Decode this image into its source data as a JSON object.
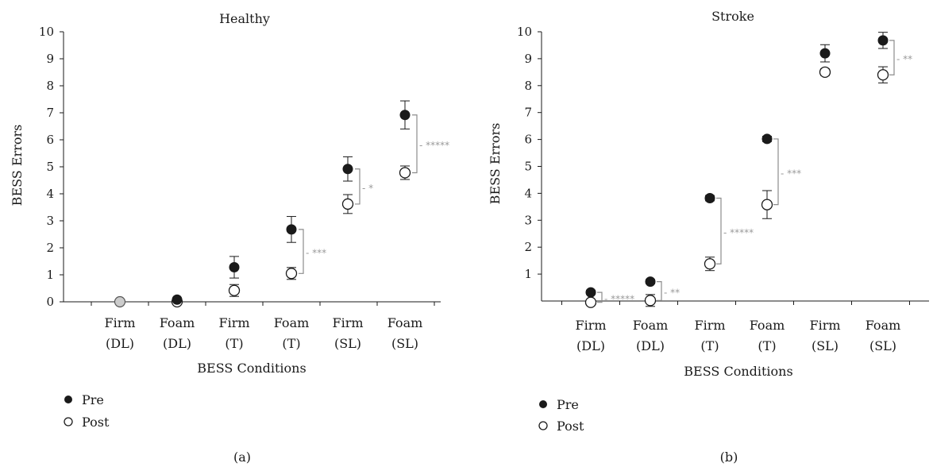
{
  "colors": {
    "pre_fill": "#1a1a1a",
    "post_fill": "#ffffff",
    "grey_point": "#cccccc",
    "bracket": "#8c8c8c",
    "axis": "#1a1a1a"
  },
  "legend": {
    "pre_label": "Pre",
    "post_label": "Post"
  },
  "chart_data": [
    {
      "type": "scatter",
      "panel_label": "(a)",
      "title": "Healthy",
      "xlabel": "BESS Conditions",
      "ylabel": "BESS Errors",
      "ylim": [
        0,
        10
      ],
      "yticks": [
        "0",
        "1",
        "2",
        "3",
        "4",
        "5",
        "6",
        "7",
        "8",
        "9",
        "10"
      ],
      "grid": false,
      "legend_position": "bottom-left",
      "categories": [
        {
          "line1": "Firm",
          "line2": "(DL)"
        },
        {
          "line1": "Foam",
          "line2": "(DL)"
        },
        {
          "line1": "Firm",
          "line2": "(T)"
        },
        {
          "line1": "Foam",
          "line2": "(T)"
        },
        {
          "line1": "Firm",
          "line2": "(SL)"
        },
        {
          "line1": "Foam",
          "line2": "(SL)"
        }
      ],
      "shared_point": {
        "category_index": 0,
        "value": 0
      },
      "series": [
        {
          "name": "Pre",
          "values": [
            null,
            0.08,
            1.28,
            2.68,
            4.92,
            6.92
          ],
          "err": [
            null,
            0.05,
            0.4,
            0.48,
            0.45,
            0.52
          ]
        },
        {
          "name": "Post",
          "values": [
            null,
            0.0,
            0.42,
            1.05,
            3.62,
            4.78
          ],
          "err": [
            null,
            0.0,
            0.22,
            0.22,
            0.35,
            0.25
          ]
        }
      ],
      "significance": [
        {
          "category_index": 3,
          "label": "***"
        },
        {
          "category_index": 4,
          "label": "*"
        },
        {
          "category_index": 5,
          "label": "*****"
        }
      ]
    },
    {
      "type": "scatter",
      "panel_label": "(b)",
      "title": "Stroke",
      "xlabel": "BESS Conditions",
      "ylabel": "BESS Errors",
      "ylim": [
        0,
        10
      ],
      "yticks": [
        "1",
        "2",
        "3",
        "4",
        "5",
        "6",
        "7",
        "8",
        "9",
        "10"
      ],
      "grid": false,
      "legend_position": "bottom-left",
      "categories": [
        {
          "line1": "Firm",
          "line2": "(DL)"
        },
        {
          "line1": "Foam",
          "line2": "(DL)"
        },
        {
          "line1": "Firm",
          "line2": "(T)"
        },
        {
          "line1": "Foam",
          "line2": "(T)"
        },
        {
          "line1": "Firm",
          "line2": "(SL)"
        },
        {
          "line1": "Foam",
          "line2": "(SL)"
        }
      ],
      "series": [
        {
          "name": "Pre",
          "values": [
            0.32,
            0.72,
            3.82,
            6.02,
            9.2,
            9.68
          ],
          "err": [
            0.08,
            0.08,
            0.1,
            0.1,
            0.32,
            0.3
          ]
        },
        {
          "name": "Post",
          "values": [
            -0.05,
            0.02,
            1.38,
            3.58,
            8.5,
            8.4
          ],
          "err": [
            0.05,
            0.22,
            0.25,
            0.52,
            0.12,
            0.3
          ]
        }
      ],
      "significance": [
        {
          "category_index": 0,
          "label": "*****"
        },
        {
          "category_index": 1,
          "label": "**"
        },
        {
          "category_index": 2,
          "label": "*****"
        },
        {
          "category_index": 3,
          "label": "***"
        },
        {
          "category_index": 5,
          "label": "**"
        }
      ]
    }
  ]
}
